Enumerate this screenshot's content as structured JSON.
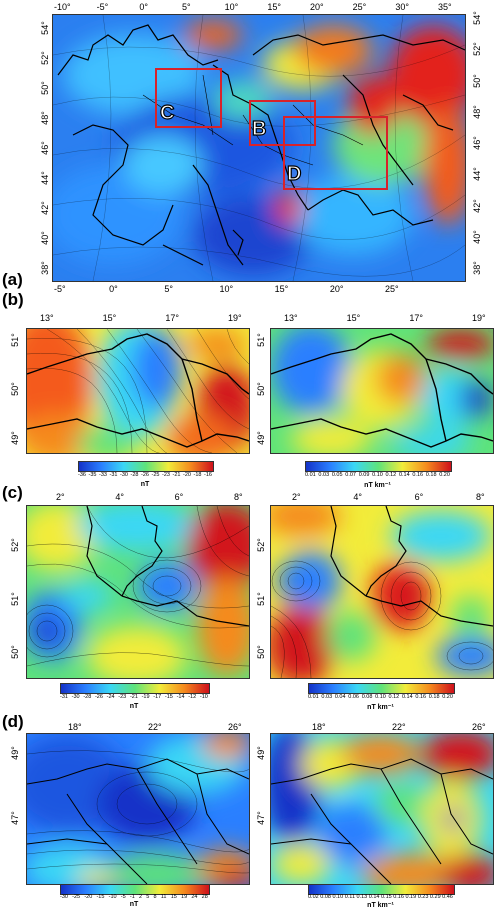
{
  "panels": {
    "a": {
      "label": "(a)",
      "top_lon": [
        "-10°",
        "-5°",
        "0°",
        "5°",
        "10°",
        "15°",
        "20°",
        "25°",
        "30°",
        "35°"
      ],
      "bottom_lon": [
        "-5°",
        "0°",
        "5°",
        "10°",
        "15°",
        "20°",
        "25°"
      ],
      "left_lat": [
        "54°",
        "52°",
        "50°",
        "48°",
        "46°",
        "44°",
        "42°",
        "40°",
        "38°"
      ],
      "right_lat": [
        "54°",
        "52°",
        "50°",
        "48°",
        "46°",
        "44°",
        "42°",
        "40°",
        "38°"
      ],
      "boxes": [
        "C",
        "B",
        "D"
      ]
    },
    "b": {
      "label": "(b)",
      "left_top_lon": [
        "13°",
        "15°",
        "17°",
        "19°"
      ],
      "right_top_lon": [
        "13°",
        "15°",
        "17°",
        "19°"
      ],
      "lat": [
        "51°",
        "50°",
        "49°"
      ],
      "cbar_left_ticks": [
        "-36",
        "-35",
        "-33",
        "-31",
        "-30",
        "-28",
        "-26",
        "-25",
        "-23",
        "-21",
        "-20",
        "-18",
        "-16"
      ],
      "cbar_left_unit": "nT",
      "cbar_right_ticks": [
        "0.01",
        "0.03",
        "0.05",
        "0.07",
        "0.09",
        "0.10",
        "0.12",
        "0.14",
        "0.16",
        "0.18",
        "0.20"
      ],
      "cbar_right_unit": "nT km⁻¹"
    },
    "c": {
      "label": "(c)",
      "left_top_lon": [
        "2°",
        "4°",
        "6°",
        "8°"
      ],
      "right_top_lon": [
        "2°",
        "4°",
        "6°",
        "8°"
      ],
      "lat": [
        "52°",
        "51°",
        "50°"
      ],
      "cbar_left_ticks": [
        "-31",
        "-30",
        "-28",
        "-26",
        "-24",
        "-23",
        "-21",
        "-19",
        "-17",
        "-15",
        "-14",
        "-12",
        "-10"
      ],
      "cbar_left_unit": "nT",
      "cbar_right_ticks": [
        "0.01",
        "0.03",
        "0.04",
        "0.06",
        "0.08",
        "0.10",
        "0.12",
        "0.14",
        "0.16",
        "0.18",
        "0.20"
      ],
      "cbar_right_unit": "nT km⁻¹"
    },
    "d": {
      "label": "(d)",
      "left_top_lon": [
        "18°",
        "22°",
        "26°"
      ],
      "right_top_lon": [
        "18°",
        "22°",
        "26°"
      ],
      "lat": [
        "49°",
        "47°"
      ],
      "cbar_left_ticks": [
        "-30",
        "-25",
        "-20",
        "-15",
        "-10",
        "-5",
        "-1",
        "2",
        "5",
        "8",
        "11",
        "15",
        "19",
        "24",
        "28"
      ],
      "cbar_left_unit": "nT",
      "cbar_right_ticks": [
        "0.02",
        "0.08",
        "0.10",
        "0.11",
        "0.13",
        "0.14",
        "0.15",
        "0.16",
        "0.19",
        "0.23",
        "0.29",
        "0.46"
      ],
      "cbar_right_unit": "nT km⁻¹"
    }
  },
  "colors": {
    "low": "#1a3fd6",
    "mid_low": "#2fb7ff",
    "mid": "#4fe08a",
    "mid_high": "#f5e83a",
    "high": "#f36b1c",
    "max": "#d3141e",
    "box": "#d8222a"
  }
}
